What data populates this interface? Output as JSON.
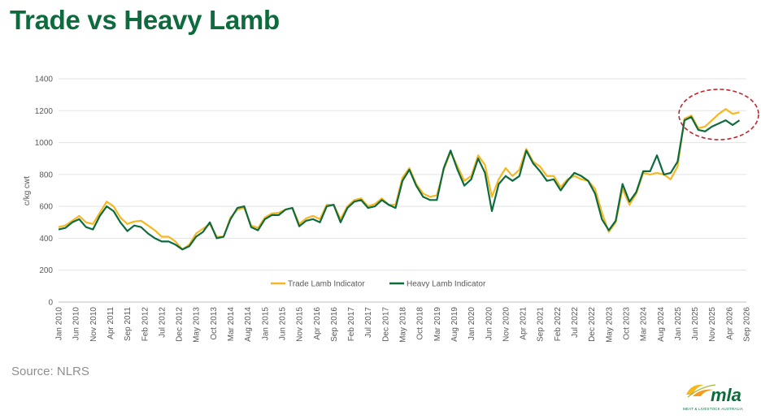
{
  "title": "Trade vs Heavy Lamb",
  "source": "Source: NLRS",
  "logo": {
    "word": "mla",
    "subtitle": "MEAT & LIVESTOCK AUSTRALIA"
  },
  "colors": {
    "trade": "#F5B722",
    "heavy": "#0E6B3D",
    "title": "#0E6B3D",
    "annotation": "#C0272D"
  },
  "chart_data": {
    "type": "line",
    "ylabel": "c/kg cwt",
    "ylim": [
      0,
      1400
    ],
    "yticks": [
      0,
      200,
      400,
      600,
      800,
      1000,
      1200,
      1400
    ],
    "grid": true,
    "legend_position": "bottom-center",
    "x_start": "2010-01",
    "x_end": "2026-09",
    "x_tick_labels": [
      "Jan 2010",
      "Jun 2010",
      "Nov 2010",
      "Apr 2011",
      "Sep 2011",
      "Feb 2012",
      "Jul 2012",
      "Dec 2012",
      "May 2013",
      "Oct 2013",
      "Mar 2014",
      "Aug 2014",
      "Jan 2015",
      "Jun 2015",
      "Nov 2015",
      "Apr 2016",
      "Sep 2016",
      "Feb 2017",
      "Jul 2017",
      "Dec 2017",
      "May 2018",
      "Oct 2018",
      "Mar 2019",
      "Aug 2019",
      "Jan 2020",
      "Jun 2020",
      "Nov 2020",
      "Apr 2021",
      "Sep 2021",
      "Feb 2022",
      "Jul 2022",
      "Dec 2022",
      "May 2023",
      "Oct 2023",
      "Mar 2024",
      "Aug 2024",
      "Jan 2025",
      "Jun 2025",
      "Nov 2025",
      "Apr 2026",
      "Sep 2026"
    ],
    "annotation": "highlight ellipse around Jun 2025 – Sep 2026",
    "series": [
      {
        "name": "Trade Lamb Indicator",
        "points": [
          [
            "2010-01",
            470
          ],
          [
            "2010-03",
            480
          ],
          [
            "2010-05",
            510
          ],
          [
            "2010-07",
            540
          ],
          [
            "2010-09",
            500
          ],
          [
            "2010-11",
            490
          ],
          [
            "2011-01",
            560
          ],
          [
            "2011-03",
            630
          ],
          [
            "2011-05",
            600
          ],
          [
            "2011-07",
            530
          ],
          [
            "2011-09",
            490
          ],
          [
            "2011-11",
            505
          ],
          [
            "2012-01",
            510
          ],
          [
            "2012-03",
            480
          ],
          [
            "2012-05",
            450
          ],
          [
            "2012-07",
            410
          ],
          [
            "2012-09",
            410
          ],
          [
            "2012-11",
            380
          ],
          [
            "2013-01",
            330
          ],
          [
            "2013-03",
            360
          ],
          [
            "2013-05",
            430
          ],
          [
            "2013-07",
            460
          ],
          [
            "2013-09",
            490
          ],
          [
            "2013-11",
            410
          ],
          [
            "2014-01",
            410
          ],
          [
            "2014-03",
            530
          ],
          [
            "2014-05",
            580
          ],
          [
            "2014-07",
            590
          ],
          [
            "2014-09",
            480
          ],
          [
            "2014-11",
            465
          ],
          [
            "2015-01",
            530
          ],
          [
            "2015-03",
            555
          ],
          [
            "2015-05",
            560
          ],
          [
            "2015-07",
            580
          ],
          [
            "2015-09",
            590
          ],
          [
            "2015-11",
            490
          ],
          [
            "2016-01",
            525
          ],
          [
            "2016-03",
            540
          ],
          [
            "2016-05",
            520
          ],
          [
            "2016-07",
            610
          ],
          [
            "2016-09",
            610
          ],
          [
            "2016-11",
            520
          ],
          [
            "2017-01",
            600
          ],
          [
            "2017-03",
            640
          ],
          [
            "2017-05",
            650
          ],
          [
            "2017-07",
            600
          ],
          [
            "2017-09",
            615
          ],
          [
            "2017-11",
            650
          ],
          [
            "2018-01",
            610
          ],
          [
            "2018-03",
            610
          ],
          [
            "2018-05",
            780
          ],
          [
            "2018-07",
            840
          ],
          [
            "2018-09",
            740
          ],
          [
            "2018-11",
            680
          ],
          [
            "2019-01",
            660
          ],
          [
            "2019-03",
            670
          ],
          [
            "2019-05",
            830
          ],
          [
            "2019-07",
            940
          ],
          [
            "2019-09",
            850
          ],
          [
            "2019-11",
            760
          ],
          [
            "2020-01",
            790
          ],
          [
            "2020-03",
            920
          ],
          [
            "2020-05",
            860
          ],
          [
            "2020-07",
            660
          ],
          [
            "2020-09",
            770
          ],
          [
            "2020-11",
            840
          ],
          [
            "2021-01",
            790
          ],
          [
            "2021-03",
            830
          ],
          [
            "2021-05",
            960
          ],
          [
            "2021-07",
            880
          ],
          [
            "2021-09",
            850
          ],
          [
            "2021-11",
            790
          ],
          [
            "2022-01",
            790
          ],
          [
            "2022-03",
            720
          ],
          [
            "2022-05",
            770
          ],
          [
            "2022-07",
            790
          ],
          [
            "2022-09",
            770
          ],
          [
            "2022-11",
            760
          ],
          [
            "2023-01",
            710
          ],
          [
            "2023-03",
            560
          ],
          [
            "2023-05",
            440
          ],
          [
            "2023-07",
            500
          ],
          [
            "2023-09",
            710
          ],
          [
            "2023-11",
            610
          ],
          [
            "2024-01",
            680
          ],
          [
            "2024-03",
            810
          ],
          [
            "2024-05",
            800
          ],
          [
            "2024-07",
            810
          ],
          [
            "2024-09",
            800
          ],
          [
            "2024-11",
            770
          ],
          [
            "2025-01",
            850
          ],
          [
            "2025-03",
            1150
          ],
          [
            "2025-05",
            1170
          ],
          [
            "2025-07",
            1090
          ],
          [
            "2025-09",
            1100
          ],
          [
            "2025-11",
            1140
          ],
          [
            "2026-01",
            1180
          ],
          [
            "2026-03",
            1210
          ],
          [
            "2026-05",
            1180
          ],
          [
            "2026-07",
            1190
          ]
        ]
      },
      {
        "name": "Heavy Lamb Indicator",
        "points": [
          [
            "2010-01",
            455
          ],
          [
            "2010-03",
            465
          ],
          [
            "2010-05",
            500
          ],
          [
            "2010-07",
            520
          ],
          [
            "2010-09",
            470
          ],
          [
            "2010-11",
            455
          ],
          [
            "2011-01",
            540
          ],
          [
            "2011-03",
            600
          ],
          [
            "2011-05",
            570
          ],
          [
            "2011-07",
            500
          ],
          [
            "2011-09",
            445
          ],
          [
            "2011-11",
            480
          ],
          [
            "2012-01",
            470
          ],
          [
            "2012-03",
            430
          ],
          [
            "2012-05",
            400
          ],
          [
            "2012-07",
            380
          ],
          [
            "2012-09",
            380
          ],
          [
            "2012-11",
            360
          ],
          [
            "2013-01",
            330
          ],
          [
            "2013-03",
            350
          ],
          [
            "2013-05",
            410
          ],
          [
            "2013-07",
            440
          ],
          [
            "2013-09",
            500
          ],
          [
            "2013-11",
            400
          ],
          [
            "2014-01",
            410
          ],
          [
            "2014-03",
            520
          ],
          [
            "2014-05",
            590
          ],
          [
            "2014-07",
            600
          ],
          [
            "2014-09",
            470
          ],
          [
            "2014-11",
            450
          ],
          [
            "2015-01",
            520
          ],
          [
            "2015-03",
            545
          ],
          [
            "2015-05",
            545
          ],
          [
            "2015-07",
            580
          ],
          [
            "2015-09",
            590
          ],
          [
            "2015-11",
            475
          ],
          [
            "2016-01",
            510
          ],
          [
            "2016-03",
            520
          ],
          [
            "2016-05",
            500
          ],
          [
            "2016-07",
            600
          ],
          [
            "2016-09",
            610
          ],
          [
            "2016-11",
            500
          ],
          [
            "2017-01",
            590
          ],
          [
            "2017-03",
            630
          ],
          [
            "2017-05",
            640
          ],
          [
            "2017-07",
            590
          ],
          [
            "2017-09",
            600
          ],
          [
            "2017-11",
            640
          ],
          [
            "2018-01",
            610
          ],
          [
            "2018-03",
            590
          ],
          [
            "2018-05",
            760
          ],
          [
            "2018-07",
            830
          ],
          [
            "2018-09",
            730
          ],
          [
            "2018-11",
            660
          ],
          [
            "2019-01",
            640
          ],
          [
            "2019-03",
            640
          ],
          [
            "2019-05",
            840
          ],
          [
            "2019-07",
            950
          ],
          [
            "2019-09",
            830
          ],
          [
            "2019-11",
            730
          ],
          [
            "2020-01",
            770
          ],
          [
            "2020-03",
            900
          ],
          [
            "2020-05",
            810
          ],
          [
            "2020-07",
            570
          ],
          [
            "2020-09",
            740
          ],
          [
            "2020-11",
            790
          ],
          [
            "2021-01",
            760
          ],
          [
            "2021-03",
            790
          ],
          [
            "2021-05",
            950
          ],
          [
            "2021-07",
            870
          ],
          [
            "2021-09",
            820
          ],
          [
            "2021-11",
            760
          ],
          [
            "2022-01",
            770
          ],
          [
            "2022-03",
            700
          ],
          [
            "2022-05",
            760
          ],
          [
            "2022-07",
            810
          ],
          [
            "2022-09",
            790
          ],
          [
            "2022-11",
            760
          ],
          [
            "2023-01",
            680
          ],
          [
            "2023-03",
            520
          ],
          [
            "2023-05",
            450
          ],
          [
            "2023-07",
            510
          ],
          [
            "2023-09",
            740
          ],
          [
            "2023-11",
            630
          ],
          [
            "2024-01",
            690
          ],
          [
            "2024-03",
            820
          ],
          [
            "2024-05",
            820
          ],
          [
            "2024-07",
            920
          ],
          [
            "2024-09",
            800
          ],
          [
            "2024-11",
            810
          ],
          [
            "2025-01",
            880
          ],
          [
            "2025-03",
            1140
          ],
          [
            "2025-05",
            1160
          ],
          [
            "2025-07",
            1080
          ],
          [
            "2025-09",
            1070
          ],
          [
            "2025-11",
            1100
          ],
          [
            "2026-01",
            1120
          ],
          [
            "2026-03",
            1140
          ],
          [
            "2026-05",
            1110
          ],
          [
            "2026-07",
            1140
          ]
        ]
      }
    ]
  }
}
